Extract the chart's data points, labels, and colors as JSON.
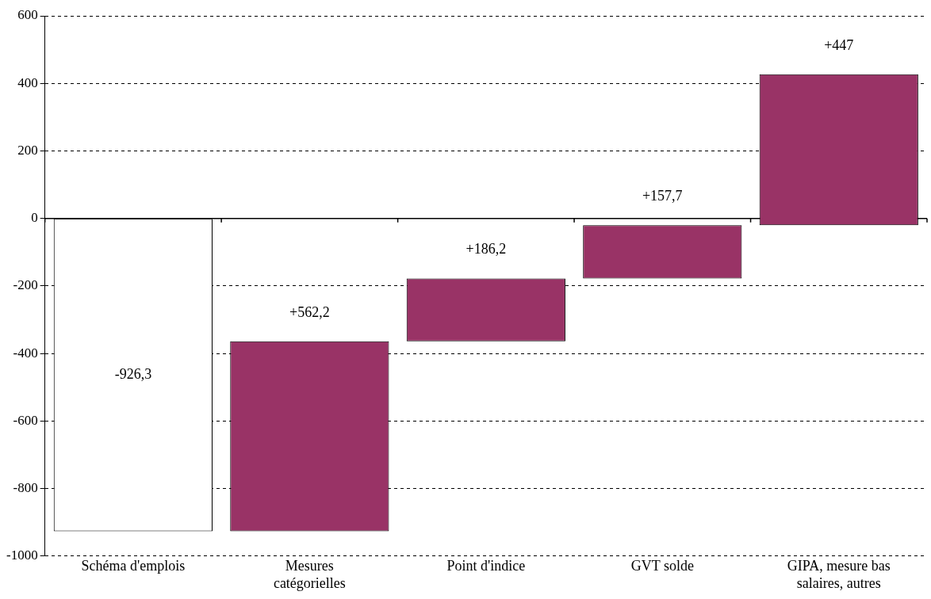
{
  "chart_data": {
    "type": "bar",
    "categories": [
      "Schéma d'emplois",
      "Mesures catégorielles",
      "Point d'indice",
      "GVT solde",
      "GIPA, mesure bas salaires, autres"
    ],
    "values": [
      -926.3,
      562.2,
      186.2,
      157.7,
      447
    ],
    "base": [
      0,
      -926.3,
      -364.1,
      -177.9,
      -20.2
    ],
    "colors": [
      "#ffffff",
      "#993366",
      "#993366",
      "#993366",
      "#993366"
    ],
    "value_labels": [
      "-926,3",
      "+562,2",
      "+186,2",
      "+157,7",
      "+447"
    ],
    "ylim": [
      -1000,
      600
    ],
    "yticks": [
      -1000,
      -800,
      -600,
      -400,
      -200,
      0,
      200,
      400,
      600
    ],
    "grid": "y",
    "line_style": "dashed",
    "ref_lines": [
      {
        "axis": "y",
        "value": 0,
        "color": "#000000"
      }
    ]
  }
}
